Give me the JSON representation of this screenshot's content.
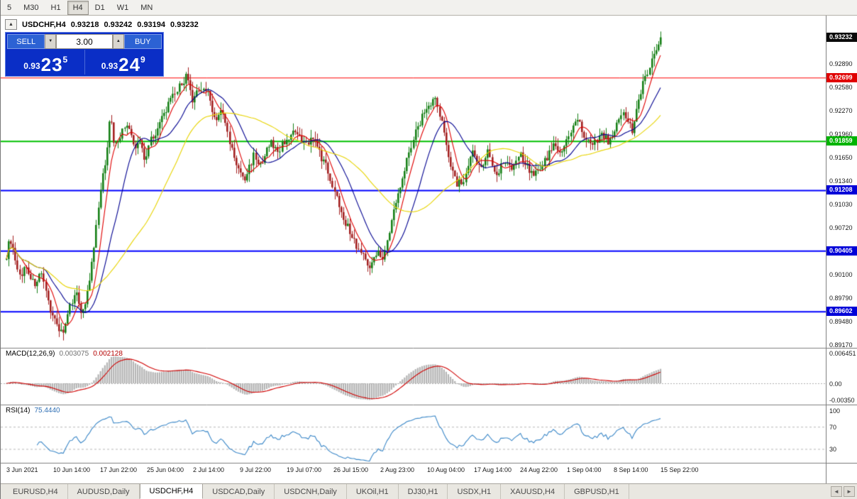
{
  "toolbar": {
    "timeframes": [
      "5",
      "M30",
      "H1",
      "H4",
      "D1",
      "W1",
      "MN"
    ],
    "active": "H4"
  },
  "chart_info": {
    "collapse_icon": "▲",
    "symbol_period": "USDCHF,H4",
    "open": "0.93218",
    "high": "0.93242",
    "low": "0.93194",
    "close": "0.93232"
  },
  "trade_panel": {
    "sell_label": "SELL",
    "buy_label": "BUY",
    "volume": "3.00",
    "spin_down_glyph": "▼",
    "spin_up_glyph": "▲",
    "bid": {
      "prefix": "0.93",
      "big": "23",
      "sup": "5"
    },
    "ask": {
      "prefix": "0.93",
      "big": "24",
      "sup": "9"
    }
  },
  "price_axis": {
    "ticks": [
      "0.92890",
      "0.92580",
      "0.92270",
      "0.91960",
      "0.91650",
      "0.91340",
      "0.91030",
      "0.90720",
      "0.90410",
      "0.90100",
      "0.89790",
      "0.89480",
      "0.89170"
    ],
    "badges": [
      {
        "text": "0.93232",
        "price": 0.93232,
        "bg": "#0a0a0a"
      },
      {
        "text": "0.92699",
        "price": 0.92699,
        "bg": "#e00000"
      },
      {
        "text": "0.91859",
        "price": 0.91859,
        "bg": "#00b400"
      },
      {
        "text": "0.91208",
        "price": 0.91208,
        "bg": "#0000d8"
      },
      {
        "text": "0.90405",
        "price": 0.90405,
        "bg": "#0000d8"
      },
      {
        "text": "0.89602",
        "price": 0.89602,
        "bg": "#0000d8"
      }
    ]
  },
  "macd_panel": {
    "label": "MACD(12,26,9)",
    "value_main": "0.003075",
    "value_signal": "0.002128",
    "axis": [
      "0.006451",
      "0.00",
      "-0.00350"
    ]
  },
  "rsi_panel": {
    "label": "RSI(14)",
    "value": "75.4440",
    "axis": [
      "100",
      "70",
      "30"
    ]
  },
  "time_axis": {
    "labels": [
      "3 Jun 2021",
      "10 Jun 14:00",
      "17 Jun 22:00",
      "25 Jun 04:00",
      "2 Jul 14:00",
      "9 Jul 22:00",
      "19 Jul 07:00",
      "26 Jul 15:00",
      "2 Aug 23:00",
      "10 Aug 04:00",
      "17 Aug 14:00",
      "24 Aug 22:00",
      "1 Sep 04:00",
      "8 Sep 14:00",
      "15 Sep 22:00"
    ]
  },
  "tabs": {
    "items": [
      {
        "label": "EURUSD,H4",
        "active": false
      },
      {
        "label": "AUDUSD,Daily",
        "active": false
      },
      {
        "label": "USDCHF,H4",
        "active": true
      },
      {
        "label": "USDCAD,Daily",
        "active": false
      },
      {
        "label": "USDCNH,Daily",
        "active": false
      },
      {
        "label": "UKOil,H1",
        "active": false
      },
      {
        "label": "DJ30,H1",
        "active": false
      },
      {
        "label": "USDX,H1",
        "active": false
      },
      {
        "label": "XAUUSD,H4",
        "active": false
      },
      {
        "label": "GBPUSD,H1",
        "active": false
      }
    ],
    "scroll_left": "◄",
    "scroll_right": "►"
  },
  "chart_data": {
    "type": "candlestick",
    "title": "USDCHF,H4",
    "symbol": "USDCHF",
    "period": "H4",
    "ohlc_current": {
      "open": 0.93218,
      "high": 0.93242,
      "low": 0.93194,
      "close": 0.93232
    },
    "current_price": 0.93232,
    "ylim": [
      0.8912,
      0.9352
    ],
    "y_ticks": [
      0.9289,
      0.9258,
      0.9227,
      0.9196,
      0.9165,
      0.9134,
      0.9103,
      0.9072,
      0.9041,
      0.901,
      0.8979,
      0.8948,
      0.8917
    ],
    "xlabels": [
      "3 Jun 2021",
      "10 Jun 14:00",
      "17 Jun 22:00",
      "25 Jun 04:00",
      "2 Jul 14:00",
      "9 Jul 22:00",
      "19 Jul 07:00",
      "26 Jul 15:00",
      "2 Aug 23:00",
      "10 Aug 04:00",
      "17 Aug 14:00",
      "24 Aug 22:00",
      "1 Sep 04:00",
      "8 Sep 14:00",
      "15 Sep 22:00"
    ],
    "grid": false,
    "levels": [
      {
        "price": 0.92699,
        "color": "#ff0000",
        "width": 1
      },
      {
        "price": 0.91859,
        "color": "#00c000",
        "width": 2
      },
      {
        "price": 0.91208,
        "color": "#0000ff",
        "width": 2
      },
      {
        "price": 0.90405,
        "color": "#0000ff",
        "width": 2
      },
      {
        "price": 0.89602,
        "color": "#0000ff",
        "width": 2
      }
    ],
    "num_candles": 300,
    "noise_amp": 0.00055,
    "wick_amp": 0.0011,
    "up_color": "#168016",
    "down_color": "#a32020",
    "price_path_anchors": [
      [
        0.0,
        0.9035
      ],
      [
        0.006,
        0.9058
      ],
      [
        0.018,
        0.9005
      ],
      [
        0.03,
        0.902
      ],
      [
        0.042,
        0.8995
      ],
      [
        0.052,
        0.901
      ],
      [
        0.065,
        0.8968
      ],
      [
        0.078,
        0.894
      ],
      [
        0.088,
        0.8932
      ],
      [
        0.096,
        0.8962
      ],
      [
        0.105,
        0.899
      ],
      [
        0.113,
        0.896
      ],
      [
        0.122,
        0.8975
      ],
      [
        0.132,
        0.903
      ],
      [
        0.142,
        0.911
      ],
      [
        0.152,
        0.9165
      ],
      [
        0.158,
        0.9222
      ],
      [
        0.165,
        0.918
      ],
      [
        0.175,
        0.9195
      ],
      [
        0.185,
        0.921
      ],
      [
        0.195,
        0.9175
      ],
      [
        0.205,
        0.9186
      ],
      [
        0.212,
        0.916
      ],
      [
        0.22,
        0.919
      ],
      [
        0.23,
        0.92
      ],
      [
        0.245,
        0.923
      ],
      [
        0.262,
        0.9255
      ],
      [
        0.275,
        0.9272
      ],
      [
        0.285,
        0.9235
      ],
      [
        0.295,
        0.9258
      ],
      [
        0.308,
        0.925
      ],
      [
        0.318,
        0.9215
      ],
      [
        0.33,
        0.9225
      ],
      [
        0.342,
        0.918
      ],
      [
        0.355,
        0.9145
      ],
      [
        0.365,
        0.9135
      ],
      [
        0.378,
        0.9168
      ],
      [
        0.39,
        0.915
      ],
      [
        0.402,
        0.9185
      ],
      [
        0.415,
        0.9172
      ],
      [
        0.428,
        0.919
      ],
      [
        0.442,
        0.9196
      ],
      [
        0.455,
        0.918
      ],
      [
        0.468,
        0.9192
      ],
      [
        0.478,
        0.917
      ],
      [
        0.49,
        0.915
      ],
      [
        0.505,
        0.911
      ],
      [
        0.52,
        0.9075
      ],
      [
        0.535,
        0.9048
      ],
      [
        0.548,
        0.903
      ],
      [
        0.558,
        0.902
      ],
      [
        0.568,
        0.9045
      ],
      [
        0.576,
        0.9028
      ],
      [
        0.59,
        0.9085
      ],
      [
        0.605,
        0.914
      ],
      [
        0.62,
        0.9185
      ],
      [
        0.638,
        0.9225
      ],
      [
        0.655,
        0.9243
      ],
      [
        0.668,
        0.92
      ],
      [
        0.678,
        0.916
      ],
      [
        0.688,
        0.913
      ],
      [
        0.7,
        0.9132
      ],
      [
        0.712,
        0.917
      ],
      [
        0.724,
        0.915
      ],
      [
        0.736,
        0.9172
      ],
      [
        0.748,
        0.914
      ],
      [
        0.76,
        0.9162
      ],
      [
        0.772,
        0.9152
      ],
      [
        0.785,
        0.9168
      ],
      [
        0.798,
        0.915
      ],
      [
        0.81,
        0.9143
      ],
      [
        0.822,
        0.9158
      ],
      [
        0.835,
        0.918
      ],
      [
        0.849,
        0.9172
      ],
      [
        0.86,
        0.9192
      ],
      [
        0.872,
        0.9215
      ],
      [
        0.884,
        0.919
      ],
      [
        0.896,
        0.9178
      ],
      [
        0.908,
        0.9196
      ],
      [
        0.92,
        0.9185
      ],
      [
        0.932,
        0.9205
      ],
      [
        0.944,
        0.9222
      ],
      [
        0.956,
        0.92
      ],
      [
        0.966,
        0.9235
      ],
      [
        0.976,
        0.927
      ],
      [
        0.988,
        0.9298
      ],
      [
        1.0,
        0.9323
      ]
    ],
    "moving_averages": [
      {
        "name": "ma-fast",
        "period": 7,
        "color": "#e00000"
      },
      {
        "name": "ma-medium",
        "period": 18,
        "color": "#000090"
      },
      {
        "name": "ma-slow",
        "period": 45,
        "color": "#e8d400"
      }
    ],
    "indicators": {
      "macd": {
        "fast": 12,
        "slow": 26,
        "signal": 9,
        "value_main": 0.003075,
        "value_signal": 0.002128,
        "ylim": [
          -0.0045,
          0.0075
        ],
        "hist_color": "#b4b4b4",
        "signal_color": "#d00000"
      },
      "rsi": {
        "period": 14,
        "value": 75.444,
        "ylim": [
          5,
          110
        ],
        "levels": [
          70,
          30
        ],
        "color": "#3a87c8"
      }
    }
  }
}
